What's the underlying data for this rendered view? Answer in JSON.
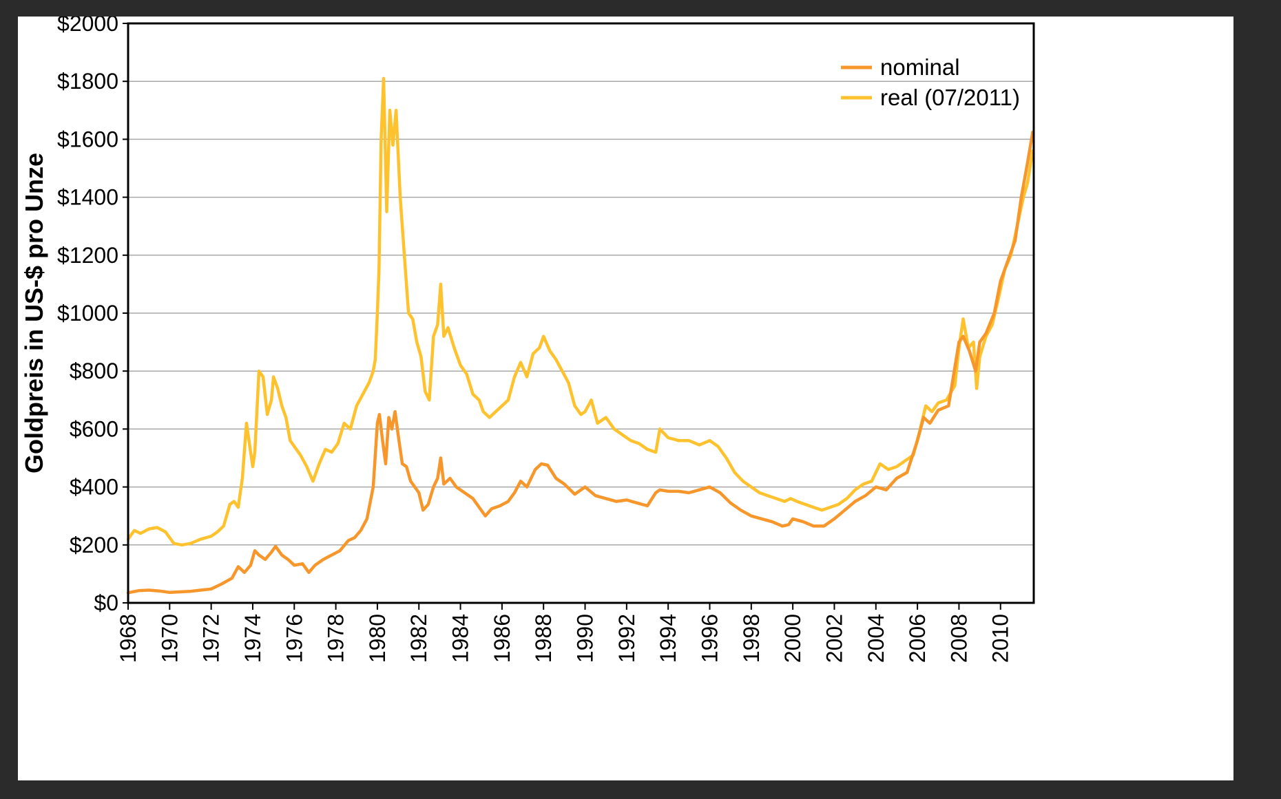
{
  "chart_data": {
    "type": "line",
    "title": "",
    "xlabel": "",
    "ylabel": "Goldpreis in US-$ pro Unze",
    "xlim": [
      1968,
      2011.6
    ],
    "ylim": [
      0,
      2000
    ],
    "y_ticks": [
      0,
      200,
      400,
      600,
      800,
      1000,
      1200,
      1400,
      1600,
      1800,
      2000
    ],
    "y_tick_labels": [
      "$0",
      "$200",
      "$400",
      "$600",
      "$800",
      "$1000",
      "$1200",
      "$1400",
      "$1600",
      "$1800",
      "$2000"
    ],
    "x_ticks": [
      1968,
      1970,
      1972,
      1974,
      1976,
      1978,
      1980,
      1982,
      1984,
      1986,
      1988,
      1990,
      1992,
      1994,
      1996,
      1998,
      2000,
      2002,
      2004,
      2006,
      2008,
      2010
    ],
    "x_tick_labels": [
      "1968",
      "1970",
      "1972",
      "1974",
      "1976",
      "1978",
      "1980",
      "1982",
      "1984",
      "1986",
      "1988",
      "1990",
      "1992",
      "1994",
      "1996",
      "1998",
      "2000",
      "2002",
      "2004",
      "2006",
      "2008",
      "2010"
    ],
    "grid": "horizontal",
    "legend_position": "top-right",
    "series": [
      {
        "name": "nominal",
        "color": "#f7962b",
        "x": [
          1968.0,
          1968.5,
          1969.0,
          1969.5,
          1970.0,
          1970.5,
          1971.0,
          1971.5,
          1972.0,
          1972.5,
          1973.0,
          1973.3,
          1973.6,
          1973.9,
          1974.1,
          1974.3,
          1974.6,
          1974.9,
          1975.1,
          1975.4,
          1975.7,
          1976.0,
          1976.4,
          1976.7,
          1977.0,
          1977.4,
          1977.8,
          1978.2,
          1978.6,
          1978.9,
          1979.2,
          1979.5,
          1979.8,
          1980.0,
          1980.1,
          1980.25,
          1980.4,
          1980.55,
          1980.7,
          1980.85,
          1981.0,
          1981.2,
          1981.4,
          1981.6,
          1981.8,
          1982.0,
          1982.2,
          1982.45,
          1982.7,
          1982.9,
          1983.05,
          1983.2,
          1983.5,
          1983.8,
          1984.2,
          1984.6,
          1985.0,
          1985.2,
          1985.5,
          1985.9,
          1986.3,
          1986.6,
          1986.9,
          1987.2,
          1987.6,
          1987.9,
          1988.2,
          1988.6,
          1989.0,
          1989.5,
          1990.0,
          1990.5,
          1991.0,
          1991.5,
          1992.0,
          1992.5,
          1993.0,
          1993.4,
          1993.6,
          1994.0,
          1994.5,
          1995.0,
          1995.5,
          1996.0,
          1996.5,
          1997.0,
          1997.5,
          1998.0,
          1998.5,
          1999.0,
          1999.5,
          1999.8,
          2000.0,
          2000.5,
          2001.0,
          2001.5,
          2002.0,
          2002.5,
          2003.0,
          2003.5,
          2004.0,
          2004.5,
          2005.0,
          2005.5,
          2006.0,
          2006.3,
          2006.6,
          2007.0,
          2007.5,
          2008.0,
          2008.2,
          2008.5,
          2008.8,
          2009.0,
          2009.3,
          2009.7,
          2010.0,
          2010.3,
          2010.7,
          2011.0,
          2011.3,
          2011.55
        ],
        "values": [
          35,
          42,
          44,
          41,
          36,
          38,
          40,
          44,
          48,
          65,
          85,
          125,
          105,
          130,
          180,
          165,
          150,
          175,
          195,
          165,
          150,
          130,
          135,
          105,
          130,
          150,
          165,
          180,
          215,
          225,
          250,
          290,
          400,
          620,
          650,
          560,
          480,
          640,
          600,
          660,
          580,
          480,
          470,
          420,
          400,
          380,
          320,
          340,
          400,
          430,
          500,
          410,
          430,
          400,
          380,
          360,
          320,
          300,
          325,
          335,
          350,
          380,
          420,
          400,
          460,
          480,
          475,
          430,
          410,
          375,
          400,
          370,
          360,
          350,
          355,
          345,
          335,
          380,
          390,
          385,
          385,
          380,
          390,
          400,
          380,
          345,
          320,
          300,
          290,
          280,
          265,
          270,
          290,
          280,
          265,
          265,
          290,
          320,
          350,
          370,
          400,
          390,
          430,
          450,
          560,
          640,
          620,
          665,
          680,
          900,
          920,
          870,
          800,
          900,
          930,
          1000,
          1110,
          1170,
          1250,
          1400,
          1520,
          1625
        ]
      },
      {
        "name": "real (07/2011)",
        "color": "#fdc22e",
        "x": [
          1968.0,
          1968.3,
          1968.6,
          1969.0,
          1969.4,
          1969.8,
          1970.2,
          1970.6,
          1971.0,
          1971.5,
          1972.0,
          1972.3,
          1972.6,
          1972.9,
          1973.1,
          1973.3,
          1973.5,
          1973.7,
          1973.9,
          1974.0,
          1974.1,
          1974.3,
          1974.5,
          1974.7,
          1974.9,
          1975.0,
          1975.2,
          1975.4,
          1975.6,
          1975.8,
          1976.0,
          1976.3,
          1976.6,
          1976.9,
          1977.2,
          1977.5,
          1977.8,
          1978.1,
          1978.4,
          1978.7,
          1979.0,
          1979.3,
          1979.6,
          1979.8,
          1979.9,
          1980.0,
          1980.08,
          1980.18,
          1980.3,
          1980.45,
          1980.6,
          1980.75,
          1980.9,
          1981.1,
          1981.3,
          1981.5,
          1981.7,
          1981.9,
          1982.1,
          1982.3,
          1982.5,
          1982.7,
          1982.9,
          1983.05,
          1983.2,
          1983.4,
          1983.7,
          1984.0,
          1984.3,
          1984.6,
          1984.9,
          1985.1,
          1985.4,
          1985.7,
          1986.0,
          1986.3,
          1986.6,
          1986.9,
          1987.2,
          1987.5,
          1987.8,
          1988.0,
          1988.3,
          1988.6,
          1988.9,
          1989.2,
          1989.5,
          1989.8,
          1990.0,
          1990.3,
          1990.6,
          1991.0,
          1991.4,
          1991.8,
          1992.2,
          1992.6,
          1993.0,
          1993.4,
          1993.6,
          1994.0,
          1994.5,
          1995.0,
          1995.5,
          1996.0,
          1996.4,
          1996.8,
          1997.2,
          1997.6,
          1998.0,
          1998.4,
          1998.8,
          1999.2,
          1999.6,
          1999.9,
          2000.2,
          2000.6,
          2001.0,
          2001.4,
          2001.8,
          2002.2,
          2002.6,
          2003.0,
          2003.4,
          2003.8,
          2004.2,
          2004.6,
          2005.0,
          2005.4,
          2005.8,
          2006.1,
          2006.4,
          2006.7,
          2007.0,
          2007.4,
          2007.8,
          2008.0,
          2008.2,
          2008.45,
          2008.7,
          2008.85,
          2009.0,
          2009.3,
          2009.6,
          2009.9,
          2010.2,
          2010.5,
          2010.8,
          2011.1,
          2011.3,
          2011.55
        ],
        "values": [
          220,
          250,
          240,
          255,
          260,
          245,
          205,
          200,
          205,
          220,
          230,
          245,
          265,
          340,
          350,
          330,
          430,
          620,
          520,
          470,
          520,
          800,
          780,
          650,
          700,
          780,
          740,
          680,
          640,
          560,
          540,
          510,
          470,
          420,
          480,
          530,
          520,
          550,
          620,
          600,
          680,
          720,
          760,
          800,
          840,
          1000,
          1150,
          1600,
          1810,
          1350,
          1700,
          1580,
          1700,
          1400,
          1200,
          1000,
          980,
          900,
          850,
          730,
          700,
          920,
          960,
          1100,
          920,
          950,
          880,
          820,
          790,
          720,
          700,
          660,
          640,
          660,
          680,
          700,
          780,
          830,
          780,
          860,
          880,
          920,
          870,
          840,
          800,
          760,
          680,
          650,
          660,
          700,
          620,
          640,
          600,
          580,
          560,
          550,
          530,
          520,
          600,
          570,
          560,
          560,
          545,
          560,
          540,
          500,
          450,
          420,
          400,
          380,
          370,
          360,
          350,
          360,
          350,
          340,
          330,
          320,
          330,
          340,
          360,
          390,
          410,
          420,
          480,
          460,
          470,
          490,
          510,
          590,
          680,
          660,
          690,
          700,
          750,
          880,
          980,
          880,
          900,
          740,
          850,
          920,
          960,
          1050,
          1150,
          1200,
          1300,
          1400,
          1450,
          1560
        ]
      }
    ]
  }
}
